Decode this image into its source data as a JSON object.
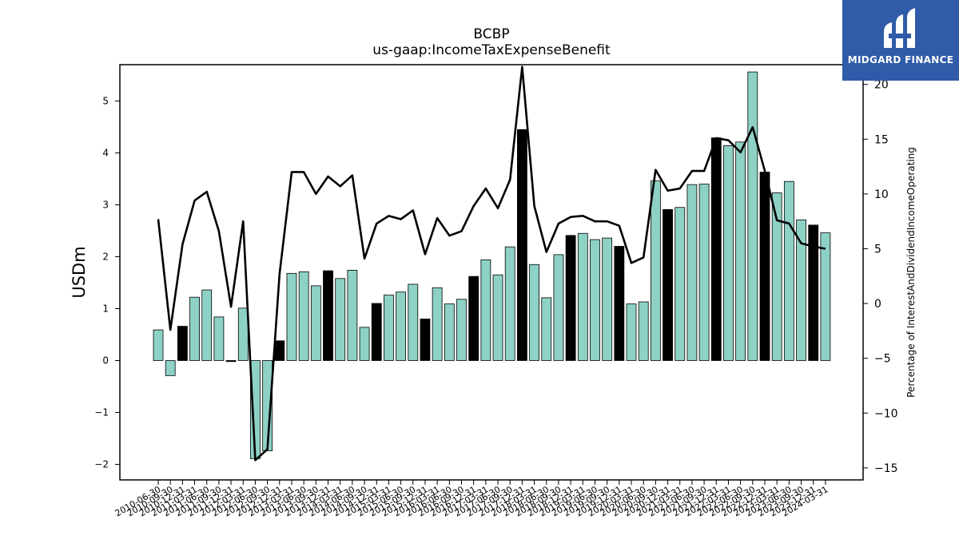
{
  "logo": {
    "text": "MIDGARD FINANCE"
  },
  "chart_data": {
    "type": "bar",
    "title": "BCBP",
    "subtitle": "us-gaap:IncomeTaxExpenseBenefit",
    "ylabel": "USDm",
    "y2label": "Percentage of InterestAndDividendIncomeOperating",
    "ylim": [
      -2.3,
      5.7
    ],
    "y2lim": [
      -16.1,
      21.8
    ],
    "yticks": [
      -2,
      -1,
      0,
      1,
      2,
      3,
      4,
      5
    ],
    "y2ticks": [
      -15,
      -10,
      -5,
      0,
      5,
      10,
      15,
      20
    ],
    "bar_colors": {
      "default": "#8ed1c5",
      "q4": "#000000"
    },
    "line_color": "#000000",
    "categories": [
      "2010-06-30",
      "2010-09-30",
      "2010-12-31",
      "2011-03-31",
      "2011-06-30",
      "2011-09-30",
      "2011-12-31",
      "2012-03-31",
      "2012-06-30",
      "2012-09-30",
      "2012-12-31",
      "2013-03-31",
      "2013-06-30",
      "2013-09-30",
      "2013-12-31",
      "2014-03-31",
      "2014-06-30",
      "2014-09-30",
      "2014-12-31",
      "2015-03-31",
      "2015-06-30",
      "2015-09-30",
      "2015-12-31",
      "2016-03-31",
      "2016-06-30",
      "2016-09-30",
      "2016-12-31",
      "2017-03-31",
      "2017-06-30",
      "2017-09-30",
      "2017-12-31",
      "2018-03-31",
      "2018-06-30",
      "2018-09-30",
      "2018-12-31",
      "2019-03-31",
      "2019-06-30",
      "2019-09-30",
      "2019-12-31",
      "2020-03-31",
      "2020-06-30",
      "2020-09-30",
      "2020-12-31",
      "2021-03-31",
      "2021-06-30",
      "2021-09-30",
      "2021-12-31",
      "2022-03-31",
      "2022-06-30",
      "2022-09-30",
      "2022-12-31",
      "2023-03-31",
      "2023-06-30",
      "2023-09-30",
      "2023-12-31",
      "2024-03-31"
    ],
    "visible_tick_labels": [
      "2010-06-30",
      "2010-09-30",
      "2010-12-31",
      "2011-03-31",
      "2011-06-30",
      "2011-09-30",
      "2011-12-31",
      "2012-03-31",
      "2012-06-30",
      "2012-09-30",
      "2012-12-31",
      "2013-03-31",
      "2013-06-30",
      "2013-09-30",
      "2013-12-31",
      "2014-03-31",
      "2014-06-30",
      "2014-09-30",
      "2014-12-31",
      "2015-03-31",
      "2015-06-30",
      "2015-09-30",
      "2015-12-31",
      "2016-03-31",
      "2016-06-30",
      "2016-09-30",
      "2016-12-31",
      "2017-03-31",
      "2017-06-30",
      "2017-09-30",
      "2017-12-31",
      "2018-03-31",
      "2018-06-30",
      "2018-09-30",
      "2018-12-31",
      "2019-03-31",
      "2019-06-30",
      "2019-09-30",
      "2019-12-31",
      "2020-03-31",
      "2020-06-30",
      "2020-09-30",
      "2020-12-31",
      "2021-03-31",
      "2021-06-30",
      "2021-09-30",
      "2021-12-31",
      "2022-03-31",
      "2022-06-30",
      "2022-09-30",
      "2022-12-31",
      "2023-03-31",
      "2023-06-30",
      "2023-09-30",
      "2023-12-31",
      "2024-03-31"
    ],
    "series": [
      {
        "type": "bar",
        "axis": "left",
        "values": [
          0.59,
          -0.29,
          0.66,
          1.22,
          1.36,
          0.84,
          -0.02,
          1.01,
          -1.89,
          -1.74,
          0.38,
          1.68,
          1.71,
          1.44,
          1.73,
          1.58,
          1.74,
          0.64,
          1.1,
          1.26,
          1.32,
          1.47,
          0.8,
          1.4,
          1.09,
          1.18,
          1.62,
          1.94,
          1.65,
          2.19,
          4.45,
          1.85,
          1.21,
          2.04,
          2.41,
          2.45,
          2.33,
          2.36,
          2.2,
          1.09,
          1.13,
          3.46,
          2.91,
          2.95,
          3.39,
          3.4,
          4.29,
          4.14,
          4.21,
          5.56,
          3.63,
          3.23,
          3.45,
          2.71,
          2.61,
          2.46
        ]
      },
      {
        "type": "line",
        "axis": "right",
        "values": [
          7.7,
          -2.4,
          5.4,
          9.4,
          10.2,
          6.6,
          -0.3,
          7.5,
          -14.3,
          -13.3,
          2.7,
          12.0,
          12.0,
          10.0,
          11.6,
          10.7,
          11.7,
          4.1,
          7.3,
          8.0,
          7.7,
          8.5,
          4.5,
          7.8,
          6.2,
          6.6,
          8.9,
          10.5,
          8.7,
          11.3,
          21.6,
          8.9,
          4.7,
          7.3,
          7.9,
          8.0,
          7.5,
          7.5,
          7.1,
          3.7,
          4.2,
          12.2,
          10.3,
          10.5,
          12.1,
          12.1,
          15.1,
          14.9,
          13.8,
          16.1,
          12.1,
          7.6,
          7.3,
          5.5,
          5.2,
          5.0
        ]
      }
    ]
  }
}
